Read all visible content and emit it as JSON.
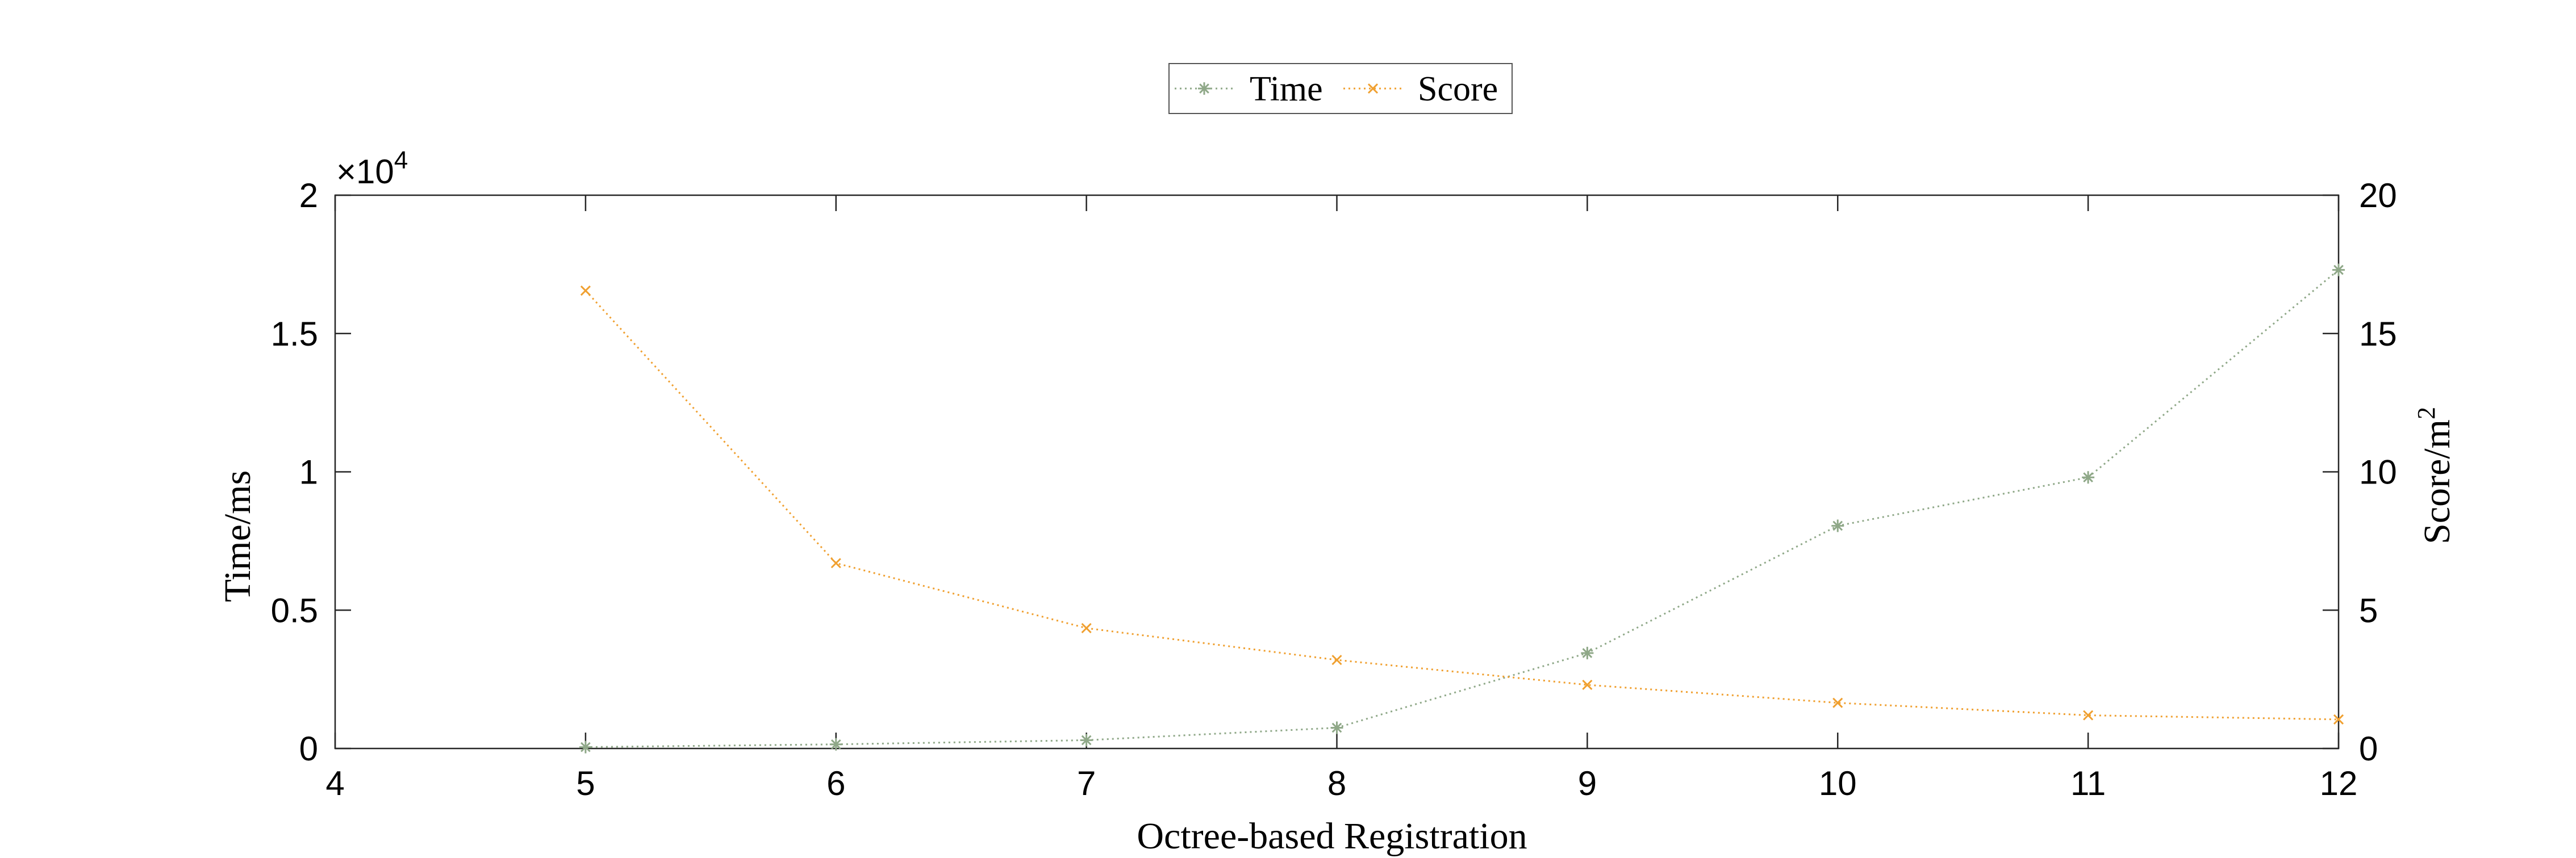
{
  "chart_data": {
    "type": "line",
    "xlabel": "Octree-based Registration",
    "ylabel_left": "Time/ms",
    "ylabel_right": "Score/m",
    "ylabel_right_superscript": "2",
    "left_axis_exponent_prefix": "×10",
    "left_axis_exponent": "4",
    "xlim": [
      4,
      12
    ],
    "xticks": [
      4,
      5,
      6,
      7,
      8,
      9,
      10,
      11,
      12
    ],
    "ylim_left": [
      0,
      20000
    ],
    "yticks_left": [
      0,
      5000,
      10000,
      15000,
      20000
    ],
    "ytick_labels_left": [
      "0",
      "0.5",
      "1",
      "1.5",
      "2"
    ],
    "ylim_right": [
      0,
      20
    ],
    "yticks_right": [
      0,
      5,
      10,
      15,
      20
    ],
    "legend_placement": "top-center",
    "grid": false,
    "x": [
      5,
      6,
      7,
      8,
      9,
      10,
      11,
      12
    ],
    "series": [
      {
        "name": "Time",
        "axis": "left",
        "color": "#8fa888",
        "marker": "asterisk",
        "values": [
          50,
          150,
          300,
          750,
          3450,
          8050,
          9800,
          17300
        ]
      },
      {
        "name": "Score",
        "axis": "right",
        "color": "#f0a030",
        "marker": "x",
        "values": [
          16.55,
          6.7,
          4.35,
          3.2,
          2.3,
          1.65,
          1.2,
          1.05
        ]
      }
    ]
  }
}
